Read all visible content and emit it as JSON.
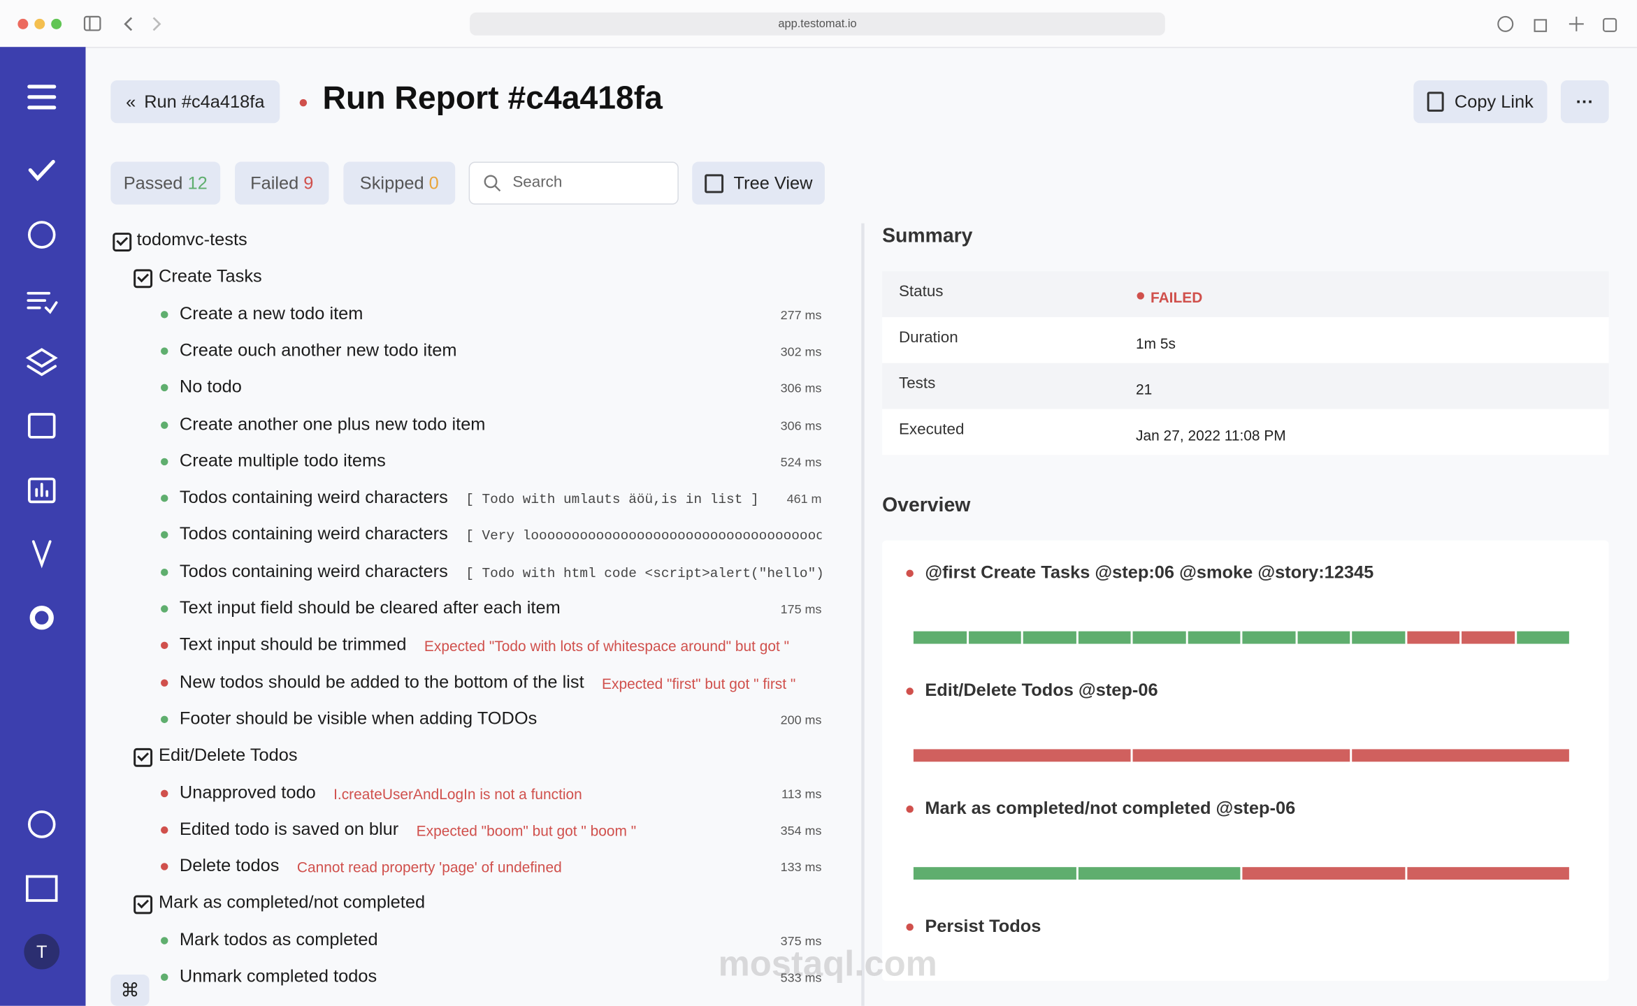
{
  "browser": {
    "url": "app.testomat.io"
  },
  "header": {
    "back_button": "Run #c4a418fa",
    "title": "Run Report #c4a418fa",
    "copy_link": "Copy Link",
    "more": "···"
  },
  "filters": {
    "passed": {
      "label": "Passed",
      "count": 12
    },
    "failed": {
      "label": "Failed",
      "count": 9
    },
    "skipped": {
      "label": "Skipped",
      "count": 0
    },
    "search_placeholder": "Search",
    "tree_view": "Tree View"
  },
  "tree": {
    "root": "todomvc-tests",
    "suites": [
      {
        "name": "Create Tasks",
        "tests": [
          {
            "name": "Create a new todo item",
            "status": "passed",
            "duration": "277 ms"
          },
          {
            "name": "Create ouch another new todo item",
            "status": "passed",
            "duration": "302 ms"
          },
          {
            "name": "No todo",
            "status": "passed",
            "duration": "306 ms"
          },
          {
            "name": "Create another one plus new todo item",
            "status": "passed",
            "duration": "306 ms"
          },
          {
            "name": "Create multiple todo items",
            "status": "passed",
            "duration": "524 ms"
          },
          {
            "name": "Todos containing weird characters",
            "status": "passed",
            "note": "[ Todo with umlauts äöü,is in list ]",
            "duration": "461 m"
          },
          {
            "name": "Todos containing weird characters",
            "status": "passed",
            "note": "[ Very loooooooooooooooooooooooooooooooooooooooooooo"
          },
          {
            "name": "Todos containing weird characters",
            "status": "passed",
            "note": "[ Todo with html code <script>alert(\"hello\")</s"
          },
          {
            "name": "Text input field should be cleared after each item",
            "status": "passed",
            "duration": "175 ms"
          },
          {
            "name": "Text input should be trimmed",
            "status": "failed",
            "error": "Expected \"Todo with lots of whitespace around\" but got \" "
          },
          {
            "name": "New todos should be added to the bottom of the list",
            "status": "failed",
            "error": "Expected \"first\" but got \" first \""
          },
          {
            "name": "Footer should be visible when adding TODOs",
            "status": "passed",
            "duration": "200 ms"
          }
        ]
      },
      {
        "name": "Edit/Delete Todos",
        "tests": [
          {
            "name": "Unapproved todo",
            "status": "failed",
            "error": "I.createUserAndLogIn is not a function",
            "duration": "113 ms"
          },
          {
            "name": "Edited todo is saved on blur",
            "status": "failed",
            "error": "Expected \"boom\" but got \" boom \"",
            "duration": "354 ms"
          },
          {
            "name": "Delete todos",
            "status": "failed",
            "error": "Cannot read property 'page' of undefined",
            "duration": "133 ms"
          }
        ]
      },
      {
        "name": "Mark as completed/not completed",
        "tests": [
          {
            "name": "Mark todos as completed",
            "status": "passed",
            "duration": "375 ms"
          },
          {
            "name": "Unmark completed todos",
            "status": "passed",
            "duration": "533 ms"
          }
        ]
      }
    ]
  },
  "summary": {
    "title": "Summary",
    "rows": [
      {
        "label": "Status",
        "value": "FAILED"
      },
      {
        "label": "Duration",
        "value": "1m 5s"
      },
      {
        "label": "Tests",
        "value": "21"
      },
      {
        "label": "Executed",
        "value": "Jan 27, 2022 11:08 PM"
      }
    ]
  },
  "overview": {
    "title": "Overview",
    "groups": [
      {
        "name": "@first Create Tasks @step:06 @smoke @story:12345",
        "segments": [
          "#5fae6e",
          "#5fae6e",
          "#5fae6e",
          "#5fae6e",
          "#5fae6e",
          "#5fae6e",
          "#5fae6e",
          "#5fae6e",
          "#5fae6e",
          "#d0605e",
          "#d0605e",
          "#5fae6e"
        ]
      },
      {
        "name": "Edit/Delete Todos @step-06",
        "segments": [
          "#d0605e",
          "#d0605e",
          "#d0605e"
        ]
      },
      {
        "name": "Mark as completed/not completed @step-06",
        "segments": [
          "#5fae6e",
          "#5fae6e",
          "#d0605e",
          "#d0605e"
        ]
      },
      {
        "name": "Persist Todos",
        "segments": []
      }
    ]
  },
  "sidebar": {
    "avatar": "T"
  },
  "watermark": "mostaql.com"
}
